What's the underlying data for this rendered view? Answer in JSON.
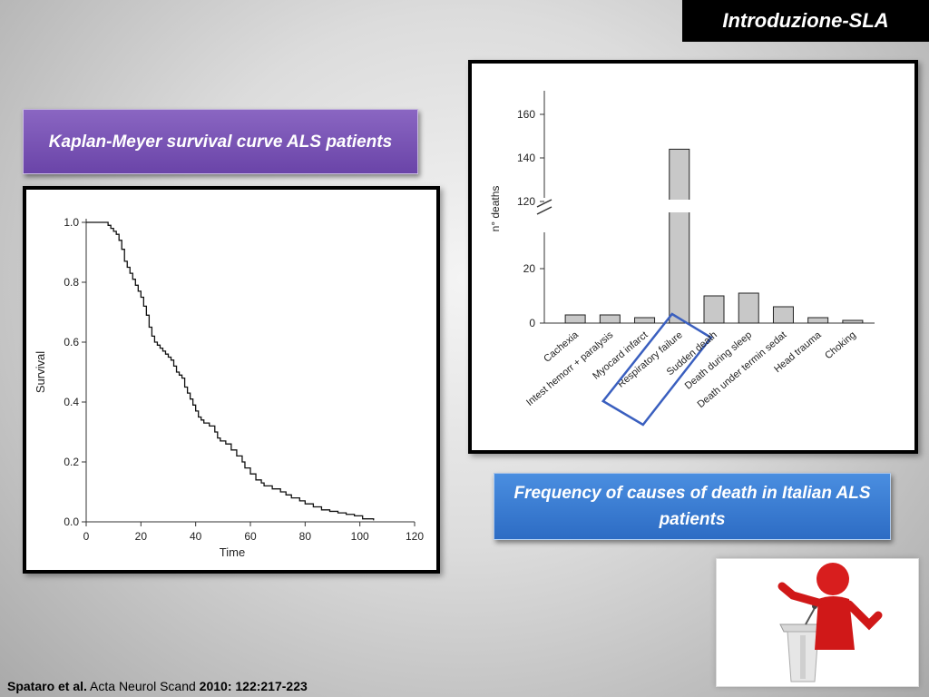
{
  "header": {
    "title": "Introduzione-SLA"
  },
  "km_label": "Kaplan-Meyer survival curve ALS patients",
  "freq_label": "Frequency of causes of death in Italian ALS patients",
  "citation": {
    "author": "Spataro et al.",
    "journal": "Acta Neurol Scand",
    "ref": "2010: 122:217-223"
  },
  "chart_data": [
    {
      "type": "line",
      "title": "",
      "xlabel": "Time",
      "ylabel": "Survival",
      "xlim": [
        0,
        120
      ],
      "ylim": [
        0,
        1.0
      ],
      "xticks": [
        0,
        20,
        40,
        60,
        80,
        100,
        120
      ],
      "yticks": [
        0.0,
        0.2,
        0.4,
        0.6,
        0.8,
        1.0
      ],
      "step": true,
      "points": [
        [
          0,
          1.0
        ],
        [
          7,
          1.0
        ],
        [
          8,
          0.99
        ],
        [
          9,
          0.98
        ],
        [
          10,
          0.97
        ],
        [
          11,
          0.96
        ],
        [
          12,
          0.94
        ],
        [
          13,
          0.91
        ],
        [
          14,
          0.87
        ],
        [
          15,
          0.85
        ],
        [
          16,
          0.83
        ],
        [
          17,
          0.81
        ],
        [
          18,
          0.79
        ],
        [
          19,
          0.77
        ],
        [
          20,
          0.75
        ],
        [
          21,
          0.72
        ],
        [
          22,
          0.69
        ],
        [
          23,
          0.65
        ],
        [
          24,
          0.62
        ],
        [
          25,
          0.6
        ],
        [
          26,
          0.59
        ],
        [
          27,
          0.58
        ],
        [
          28,
          0.57
        ],
        [
          29,
          0.56
        ],
        [
          30,
          0.55
        ],
        [
          31,
          0.54
        ],
        [
          32,
          0.52
        ],
        [
          33,
          0.5
        ],
        [
          34,
          0.49
        ],
        [
          35,
          0.48
        ],
        [
          36,
          0.45
        ],
        [
          37,
          0.43
        ],
        [
          38,
          0.41
        ],
        [
          39,
          0.39
        ],
        [
          40,
          0.37
        ],
        [
          41,
          0.35
        ],
        [
          42,
          0.34
        ],
        [
          43,
          0.33
        ],
        [
          45,
          0.32
        ],
        [
          47,
          0.3
        ],
        [
          48,
          0.28
        ],
        [
          49,
          0.27
        ],
        [
          51,
          0.26
        ],
        [
          53,
          0.24
        ],
        [
          55,
          0.22
        ],
        [
          57,
          0.2
        ],
        [
          58,
          0.18
        ],
        [
          60,
          0.16
        ],
        [
          62,
          0.14
        ],
        [
          64,
          0.13
        ],
        [
          65,
          0.12
        ],
        [
          68,
          0.11
        ],
        [
          71,
          0.1
        ],
        [
          73,
          0.09
        ],
        [
          75,
          0.08
        ],
        [
          78,
          0.07
        ],
        [
          80,
          0.06
        ],
        [
          83,
          0.05
        ],
        [
          86,
          0.04
        ],
        [
          89,
          0.035
        ],
        [
          92,
          0.03
        ],
        [
          95,
          0.025
        ],
        [
          98,
          0.02
        ],
        [
          101,
          0.01
        ],
        [
          105,
          0.005
        ]
      ]
    },
    {
      "type": "bar",
      "title": "",
      "xlabel": "",
      "ylabel": "n° deaths",
      "categories": [
        "Cachexia",
        "Intest hemorr + paralysis",
        "Myocard infarct",
        "Respiratory failure",
        "Sudden death",
        "Death during sleep",
        "Death under termin sedat",
        "Head trauma",
        "Choking"
      ],
      "values": [
        3,
        3,
        2,
        144,
        10,
        11,
        6,
        2,
        1
      ],
      "yticks": [
        0,
        20,
        120,
        140,
        160
      ],
      "axis_break": [
        30,
        110
      ],
      "highlight": "Respiratory failure",
      "highlight_color": "#3a5fbf"
    }
  ]
}
